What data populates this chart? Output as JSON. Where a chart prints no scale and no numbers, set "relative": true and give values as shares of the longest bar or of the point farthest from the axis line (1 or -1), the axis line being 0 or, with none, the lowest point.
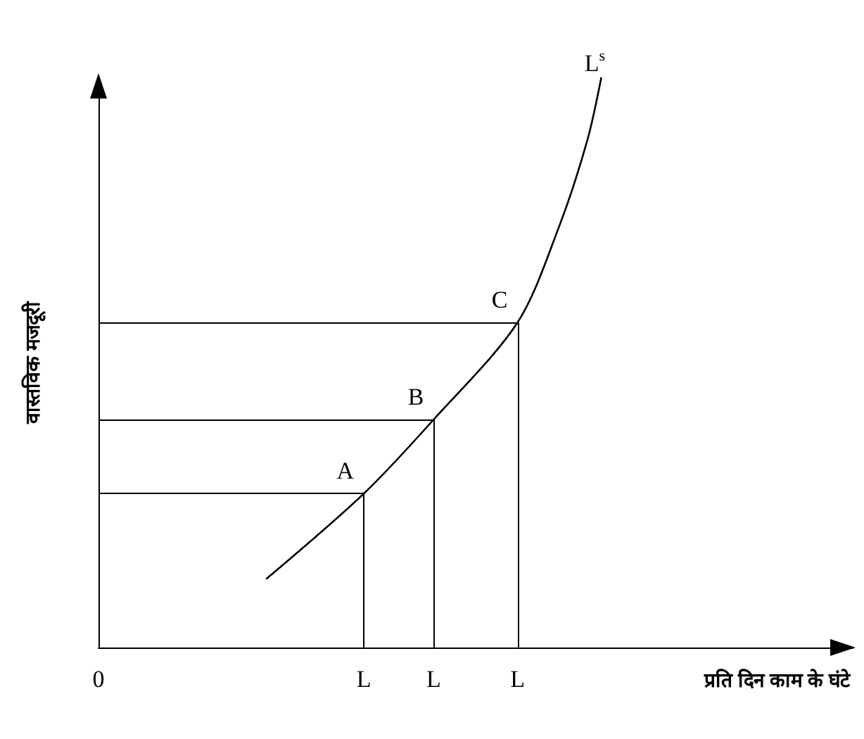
{
  "chart_data": {
    "type": "line",
    "relative": true,
    "xlabel": "प्रति दिन काम के घंटे",
    "ylabel": "वास्तविक मजदूरी",
    "categories": [
      "0",
      null,
      null,
      null,
      null,
      null,
      null,
      null,
      null,
      null,
      null,
      null,
      null,
      null,
      null,
      null,
      null,
      null,
      null,
      "L",
      null,
      null,
      null,
      null,
      "L",
      null,
      null,
      null,
      null,
      null,
      "L",
      null,
      null,
      null,
      null,
      null,
      null,
      null,
      null,
      null,
      null,
      null,
      null,
      null,
      null,
      null,
      null,
      null,
      null,
      null,
      null,
      null,
      null,
      null,
      null
    ],
    "series": [
      {
        "name": "L$^{s}$",
        "color": "#000000",
        "values": [
          null,
          null,
          null,
          null,
          null,
          null,
          null,
          null,
          null,
          null,
          null,
          null,
          0.12,
          null,
          null,
          null,
          null,
          null,
          null,
          0.27,
          null,
          null,
          null,
          null,
          0.4,
          null,
          null,
          null,
          null,
          null,
          0.57,
          null,
          null,
          0.74,
          null,
          0.89,
          1,
          null,
          null,
          null,
          null,
          null,
          null,
          null,
          null,
          null,
          null,
          null,
          null,
          null,
          null,
          null,
          null,
          null,
          null
        ]
      }
    ],
    "annotations": [
      "A",
      "B",
      "C"
    ],
    "marker": "none",
    "grid": false,
    "legend": false
  }
}
